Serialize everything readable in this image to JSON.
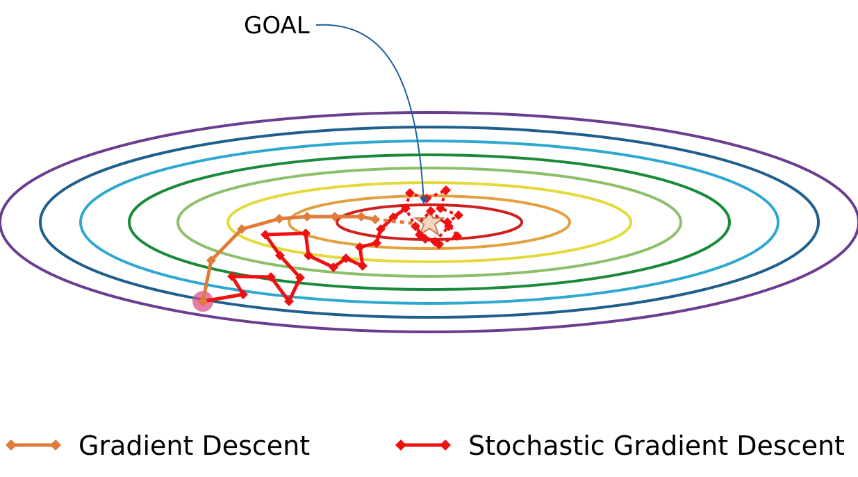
{
  "goal_label": "GOAL",
  "legend": {
    "gd": {
      "label": "Gradient Descent",
      "color": "#E07B39"
    },
    "sgd": {
      "label": "Stochastic Gradient Descent",
      "color": "#EE1111"
    }
  },
  "goal_arrow_color": "#1F5F9E",
  "contour_colors": [
    "#6B3D8E",
    "#1F5F8C",
    "#2FA8D0",
    "#1A8A3A",
    "#8DBF6A",
    "#E3DA3A",
    "#E3A040",
    "#D0201E"
  ],
  "start_point_color": "#D9508A",
  "star_icon": "star-icon"
}
